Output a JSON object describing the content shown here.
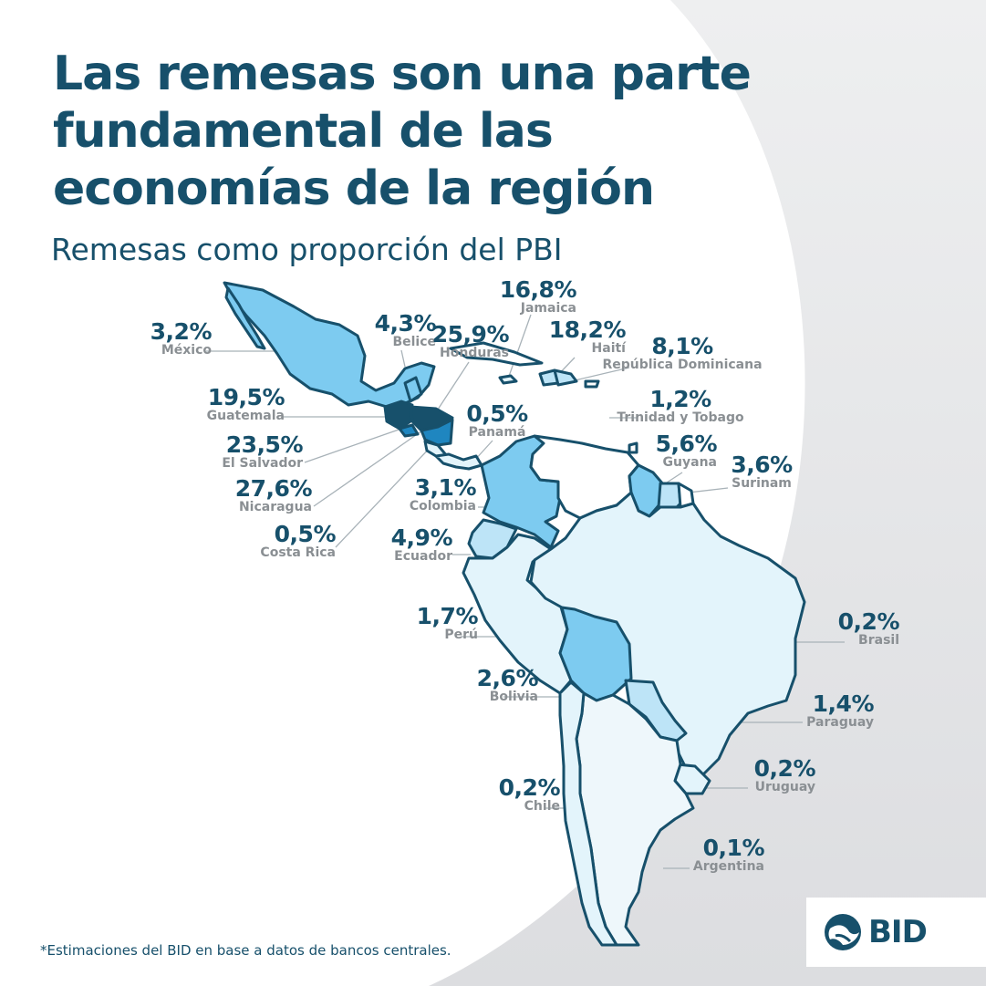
{
  "title_lines": [
    "Las remesas son una parte",
    "fundamental de las",
    "economías de la región"
  ],
  "subtitle": "Remesas como proporción del PBI",
  "footnote": "*Estimaciones del BID en base a datos de bancos centrales.",
  "logo_text": "BID",
  "colors": {
    "title": "#17506b",
    "label_gray": "#8a8f93",
    "shade_darkest": "#17506b",
    "shade_dark": "#1f86c0",
    "shade_mid": "#7dcbf0",
    "shade_light": "#bde4f7",
    "shade_lightest": "#e3f4fb"
  },
  "countries": [
    {
      "id": "mexico",
      "name": "México",
      "value": "3,2%"
    },
    {
      "id": "belice",
      "name": "Belice",
      "value": "4,3%"
    },
    {
      "id": "honduras",
      "name": "Honduras",
      "value": "25,9%"
    },
    {
      "id": "jamaica",
      "name": "Jamaica",
      "value": "16,8%"
    },
    {
      "id": "haiti",
      "name": "Haití",
      "value": "18,2%"
    },
    {
      "id": "dominicana",
      "name": "República Dominicana",
      "value": "8,1%"
    },
    {
      "id": "guatemala",
      "name": "Guatemala",
      "value": "19,5%"
    },
    {
      "id": "panama",
      "name": "Panamá",
      "value": "0,5%"
    },
    {
      "id": "trinidad",
      "name": "Trinidad y Tobago",
      "value": "1,2%"
    },
    {
      "id": "elsalvador",
      "name": "El Salvador",
      "value": "23,5%"
    },
    {
      "id": "guyana",
      "name": "Guyana",
      "value": "5,6%"
    },
    {
      "id": "surinam",
      "name": "Surinam",
      "value": "3,6%"
    },
    {
      "id": "nicaragua",
      "name": "Nicaragua",
      "value": "27,6%"
    },
    {
      "id": "colombia",
      "name": "Colombia",
      "value": "3,1%"
    },
    {
      "id": "costarica",
      "name": "Costa Rica",
      "value": "0,5%"
    },
    {
      "id": "ecuador",
      "name": "Ecuador",
      "value": "4,9%"
    },
    {
      "id": "peru",
      "name": "Perú",
      "value": "1,7%"
    },
    {
      "id": "brasil",
      "name": "Brasil",
      "value": "0,2%"
    },
    {
      "id": "bolivia",
      "name": "Bolivia",
      "value": "2,6%"
    },
    {
      "id": "paraguay",
      "name": "Paraguay",
      "value": "1,4%"
    },
    {
      "id": "uruguay",
      "name": "Uruguay",
      "value": "0,2%"
    },
    {
      "id": "chile",
      "name": "Chile",
      "value": "0,2%"
    },
    {
      "id": "argentina",
      "name": "Argentina",
      "value": "0,1%"
    }
  ]
}
